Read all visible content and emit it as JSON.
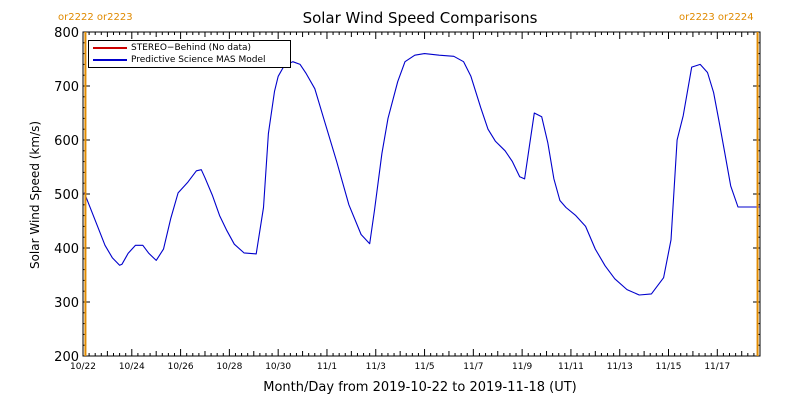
{
  "chart_data": {
    "type": "line",
    "title": "Solar Wind Speed Comparisons",
    "xlabel": "Month/Day from 2019-10-22 to 2019-11-18 (UT)",
    "ylabel": "Solar Wind Speed (km/s)",
    "xlim": [
      0,
      27.75
    ],
    "ylim": [
      200,
      800
    ],
    "x_unit_note": "",
    "x_ticks": [
      {
        "x": 0,
        "label": "10/22"
      },
      {
        "x": 2,
        "label": "10/24"
      },
      {
        "x": 4,
        "label": "10/26"
      },
      {
        "x": 6,
        "label": "10/28"
      },
      {
        "x": 8,
        "label": "10/30"
      },
      {
        "x": 10,
        "label": "11/1"
      },
      {
        "x": 12,
        "label": "11/3"
      },
      {
        "x": 14,
        "label": "11/5"
      },
      {
        "x": 16,
        "label": "11/7"
      },
      {
        "x": 18,
        "label": "11/9"
      },
      {
        "x": 20,
        "label": "11/11"
      },
      {
        "x": 22,
        "label": "11/13"
      },
      {
        "x": 24,
        "label": "11/15"
      },
      {
        "x": 26,
        "label": "11/17"
      }
    ],
    "y_ticks": [
      200,
      300,
      400,
      500,
      600,
      700,
      800
    ],
    "legend_position": "top-left",
    "series": [
      {
        "name": "STEREO−Behind (No data)",
        "color": "#cc0000",
        "x": [],
        "y": []
      },
      {
        "name": "Predictive Science MAS Model",
        "color": "#0000cc",
        "x": [
          0.05,
          0.6,
          0.9,
          1.2,
          1.5,
          1.6,
          1.85,
          2.15,
          2.45,
          2.7,
          3.0,
          3.3,
          3.6,
          3.9,
          4.3,
          4.65,
          4.85,
          5.0,
          5.3,
          5.6,
          5.9,
          6.2,
          6.6,
          7.1,
          7.4,
          7.6,
          7.85,
          8.0,
          8.25,
          8.6,
          8.9,
          9.15,
          9.5,
          9.9,
          10.4,
          10.9,
          11.4,
          11.75,
          11.95,
          12.25,
          12.5,
          12.9,
          13.2,
          13.6,
          14.0,
          14.6,
          15.2,
          15.6,
          15.9,
          16.3,
          16.6,
          16.9,
          17.3,
          17.6,
          17.9,
          18.1,
          18.3,
          18.5,
          18.8,
          19.05,
          19.3,
          19.55,
          19.8,
          20.2,
          20.6,
          21.0,
          21.4,
          21.8,
          22.3,
          22.8,
          23.3,
          23.8,
          24.1,
          24.35,
          24.6,
          24.95,
          25.3,
          25.6,
          25.85,
          26.1,
          26.3,
          26.55,
          26.85,
          27.15,
          27.4,
          27.65,
          27.75
        ],
        "y": [
          503,
          440,
          405,
          382,
          368,
          370,
          390,
          405,
          405,
          390,
          377,
          398,
          455,
          502,
          522,
          543,
          545,
          530,
          498,
          460,
          432,
          407,
          391,
          389,
          475,
          612,
          690,
          718,
          738,
          745,
          740,
          723,
          695,
          635,
          560,
          480,
          425,
          408,
          470,
          575,
          640,
          708,
          745,
          757,
          760,
          757,
          755,
          745,
          718,
          660,
          620,
          598,
          580,
          560,
          532,
          528,
          590,
          650,
          643,
          595,
          528,
          488,
          475,
          460,
          440,
          398,
          367,
          343,
          323,
          313,
          315,
          345,
          415,
          600,
          645,
          735,
          740,
          725,
          688,
          628,
          578,
          515,
          476,
          476,
          476,
          476,
          476
        ]
      }
    ],
    "orange_markers": {
      "left_labels": [
        "or2222",
        "or2223"
      ],
      "right_labels": [
        "or2223",
        "or2224"
      ],
      "color": "#e08a00",
      "left_x": 0.1,
      "right_x": 27.65
    }
  }
}
